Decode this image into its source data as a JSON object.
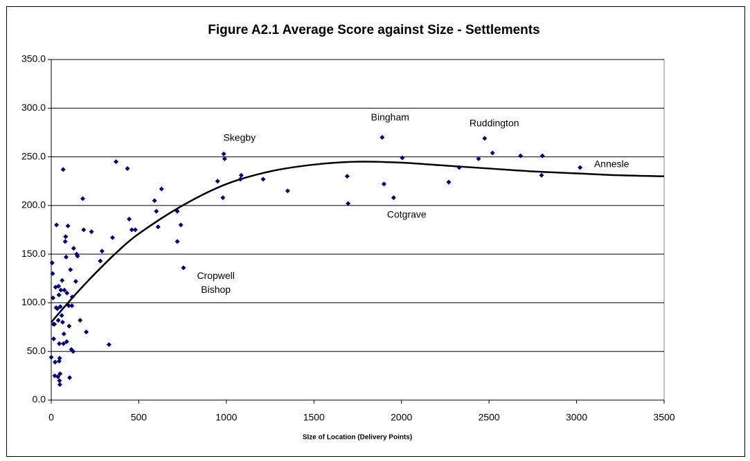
{
  "chart_data": {
    "type": "scatter",
    "title": "Figure A2.1 Average Score against Size - Settlements",
    "x_label": "SIze of Location (Delivery Points)",
    "xlim": [
      0,
      3500
    ],
    "xticks": [
      0,
      500,
      1000,
      1500,
      2000,
      2500,
      3000,
      3500
    ],
    "ylim": [
      0,
      350
    ],
    "yticks": [
      {
        "value": 0,
        "label": "0.0"
      },
      {
        "value": 50,
        "label": "50.0"
      },
      {
        "value": 100,
        "label": "100.0"
      },
      {
        "value": 150,
        "label": "150.0"
      },
      {
        "value": 200,
        "label": "200.0"
      },
      {
        "value": 250,
        "label": "250.0"
      },
      {
        "value": 300,
        "label": "300.0"
      },
      {
        "value": 350,
        "label": "350.0"
      }
    ],
    "grid": true,
    "series": [
      {
        "color": "#000080",
        "x": [
          0,
          5,
          8,
          10,
          12,
          14,
          18,
          20,
          22,
          25,
          28,
          30,
          35,
          38,
          40,
          42,
          44,
          45,
          46,
          47,
          48,
          49,
          50,
          52,
          55,
          60,
          62,
          65,
          68,
          70,
          72,
          75,
          80,
          82,
          85,
          88,
          90,
          95,
          100,
          102,
          105,
          110,
          115,
          118,
          120,
          125,
          128,
          140,
          145,
          150,
          165,
          180,
          185,
          200,
          230,
          280,
          290,
          330,
          350,
          370,
          435,
          445,
          460,
          480,
          590,
          600,
          610,
          630,
          720,
          720,
          740,
          755,
          950,
          980,
          985,
          990,
          1080,
          1085,
          1210,
          1350,
          1690,
          1695,
          1890,
          1900,
          1955,
          2005,
          2270,
          2330,
          2440,
          2475,
          2520,
          2680,
          2800,
          2805,
          3020
        ],
        "values": [
          44,
          141,
          130,
          105,
          78,
          63,
          78,
          25,
          39,
          116,
          95,
          180,
          94,
          24,
          82,
          117,
          108,
          40,
          58,
          20,
          43,
          16,
          27,
          96,
          113,
          87,
          123,
          80,
          237,
          58,
          68,
          113,
          163,
          168,
          147,
          60,
          110,
          179,
          97,
          76,
          23,
          134,
          52,
          97,
          106,
          50,
          156,
          122,
          150,
          148,
          82,
          207,
          175,
          70,
          173,
          143,
          153,
          57,
          167,
          245,
          238,
          186,
          175,
          175,
          205,
          194,
          178,
          217,
          194,
          163,
          180,
          136,
          225,
          208,
          253,
          248,
          227,
          231,
          227,
          215,
          230,
          202,
          270,
          222,
          208,
          249,
          224,
          239,
          248,
          269,
          254,
          251,
          231,
          251,
          239
        ]
      }
    ],
    "trendline": {
      "color": "#000000",
      "x": [
        0,
        125,
        250,
        375,
        500,
        750,
        1000,
        1250,
        1500,
        1750,
        2000,
        2250,
        2500,
        2750,
        3000,
        3250,
        3500
      ],
      "values": [
        80,
        106,
        130,
        152,
        171,
        200,
        222,
        235,
        242,
        245,
        244,
        241,
        238,
        235,
        233,
        231,
        230
      ]
    },
    "annotations": [
      {
        "text": "Skegby",
        "x": 1075,
        "y": 269
      },
      {
        "text": "Bingham",
        "x": 1935,
        "y": 290
      },
      {
        "text": "Ruddington",
        "x": 2530,
        "y": 284
      },
      {
        "text": "Annesle",
        "x": 3200,
        "y": 242
      },
      {
        "text": "Cotgrave",
        "x": 2030,
        "y": 190
      },
      {
        "text": "Cropwell",
        "x": 940,
        "y": 127
      },
      {
        "text": "Bishop",
        "x": 940,
        "y": 113
      }
    ]
  }
}
